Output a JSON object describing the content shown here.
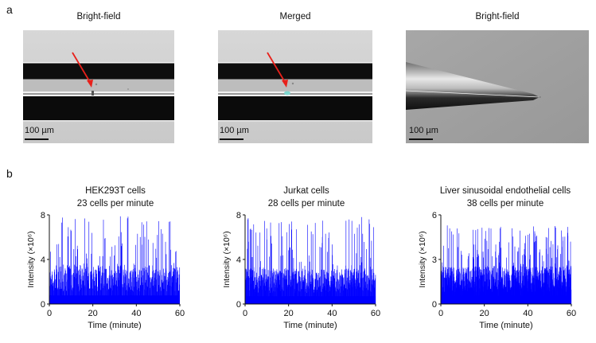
{
  "panel_a": {
    "letter": "a",
    "images": [
      {
        "title": "Bright-field",
        "scale_label": "100 µm"
      },
      {
        "title": "Merged",
        "scale_label": "100 µm"
      },
      {
        "title": "Bright-field",
        "scale_label": "100 µm"
      }
    ]
  },
  "panel_b": {
    "letter": "b"
  },
  "colors": {
    "trace": "#0000ff",
    "arrow": "#e8201a",
    "cell_merged": "#7fd8d0"
  },
  "chart_data": [
    {
      "type": "bar",
      "title": "HEK293T cells",
      "subtitle": "23 cells per minute",
      "xlabel": "Time (minute)",
      "ylabel": "Intensity (×10⁶)",
      "xlim": [
        0,
        60
      ],
      "ylim": [
        0,
        8
      ],
      "xticks": [
        0,
        20,
        40,
        60
      ],
      "yticks": [
        0,
        4,
        8
      ],
      "events_per_minute": 23,
      "typical_peak": 2.2,
      "max_peak": 7.9
    },
    {
      "type": "bar",
      "title": "Jurkat cells",
      "subtitle": "28 cells per minute",
      "xlabel": "Time (minute)",
      "ylabel": "Intensity (×10⁶)",
      "xlim": [
        0,
        60
      ],
      "ylim": [
        0,
        8
      ],
      "xticks": [
        0,
        20,
        40,
        60
      ],
      "yticks": [
        0,
        4,
        8
      ],
      "events_per_minute": 28,
      "typical_peak": 2.0,
      "max_peak": 7.8
    },
    {
      "type": "bar",
      "title": "Liver sinusoidal endothelial cells",
      "subtitle": "38 cells per minute",
      "xlabel": "Time (minute)",
      "ylabel": "Intensity (×10⁶)",
      "xlim": [
        0,
        60
      ],
      "ylim": [
        0,
        6
      ],
      "xticks": [
        0,
        20,
        40,
        60
      ],
      "yticks": [
        0,
        3,
        6
      ],
      "events_per_minute": 38,
      "typical_peak": 1.6,
      "max_peak": 5.3
    }
  ]
}
